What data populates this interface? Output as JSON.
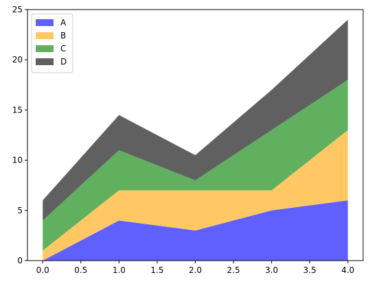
{
  "chart_data": {
    "type": "area",
    "stacked": true,
    "x": [
      0.0,
      1.0,
      2.0,
      3.0,
      4.0
    ],
    "series": [
      {
        "name": "A",
        "values": [
          0,
          4,
          3,
          5,
          6
        ],
        "color": "#6060ff"
      },
      {
        "name": "B",
        "values": [
          1,
          3,
          4,
          2,
          7
        ],
        "color": "#ffc864"
      },
      {
        "name": "C",
        "values": [
          3,
          4,
          1,
          6,
          5
        ],
        "color": "#60b060"
      },
      {
        "name": "D",
        "values": [
          2,
          3.5,
          2.5,
          4,
          6
        ],
        "color": "#606060"
      }
    ],
    "xlim": [
      -0.2,
      4.2
    ],
    "ylim": [
      0,
      25
    ],
    "xticks": [
      "0.0",
      "0.5",
      "1.0",
      "1.5",
      "2.0",
      "2.5",
      "3.0",
      "3.5",
      "4.0"
    ],
    "xtick_values": [
      0,
      0.5,
      1,
      1.5,
      2,
      2.5,
      3,
      3.5,
      4
    ],
    "yticks": [
      "0",
      "5",
      "10",
      "15",
      "20",
      "25"
    ],
    "ytick_values": [
      0,
      5,
      10,
      15,
      20,
      25
    ],
    "title": "",
    "xlabel": "",
    "ylabel": "",
    "grid": false,
    "legend": "upper-left"
  }
}
